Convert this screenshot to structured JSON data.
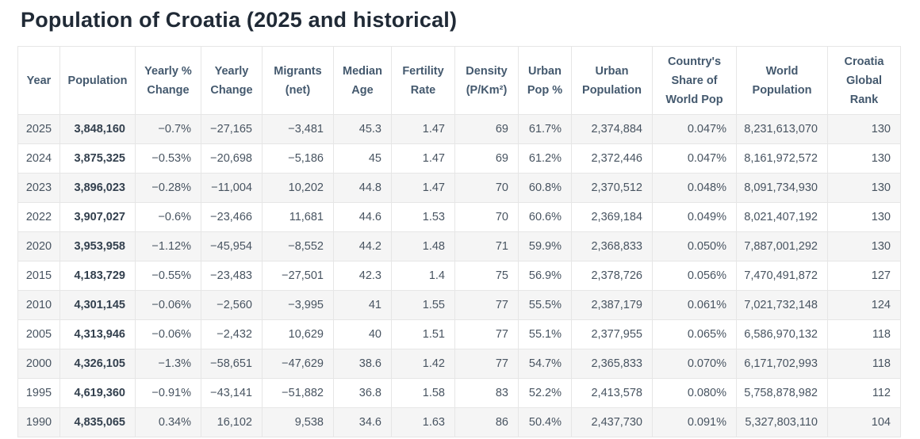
{
  "page": {
    "title": "Population of Croatia (2025 and historical)"
  },
  "table": {
    "columns": [
      {
        "id": "year",
        "label": "Year"
      },
      {
        "id": "population",
        "label": "Population"
      },
      {
        "id": "yearly_pct_change",
        "label": "Yearly % Change"
      },
      {
        "id": "yearly_change",
        "label": "Yearly Change"
      },
      {
        "id": "migrants_net",
        "label": "Migrants (net)"
      },
      {
        "id": "median_age",
        "label": "Median Age"
      },
      {
        "id": "fertility_rate",
        "label": "Fertility Rate"
      },
      {
        "id": "density",
        "label": "Density (P/Km²)"
      },
      {
        "id": "urban_pop_pct",
        "label": "Urban Pop %"
      },
      {
        "id": "urban_population",
        "label": "Urban Population"
      },
      {
        "id": "share_world_pop",
        "label": "Country's Share of World Pop"
      },
      {
        "id": "world_population",
        "label": "World Population"
      },
      {
        "id": "global_rank",
        "label": "Croatia Global Rank"
      }
    ],
    "rows": [
      [
        "2025",
        "3,848,160",
        "−0.7%",
        "−27,165",
        "−3,481",
        "45.3",
        "1.47",
        "69",
        "61.7%",
        "2,374,884",
        "0.047%",
        "8,231,613,070",
        "130"
      ],
      [
        "2024",
        "3,875,325",
        "−0.53%",
        "−20,698",
        "−5,186",
        "45",
        "1.47",
        "69",
        "61.2%",
        "2,372,446",
        "0.047%",
        "8,161,972,572",
        "130"
      ],
      [
        "2023",
        "3,896,023",
        "−0.28%",
        "−11,004",
        "10,202",
        "44.8",
        "1.47",
        "70",
        "60.8%",
        "2,370,512",
        "0.048%",
        "8,091,734,930",
        "130"
      ],
      [
        "2022",
        "3,907,027",
        "−0.6%",
        "−23,466",
        "11,681",
        "44.6",
        "1.53",
        "70",
        "60.6%",
        "2,369,184",
        "0.049%",
        "8,021,407,192",
        "130"
      ],
      [
        "2020",
        "3,953,958",
        "−1.12%",
        "−45,954",
        "−8,552",
        "44.2",
        "1.48",
        "71",
        "59.9%",
        "2,368,833",
        "0.050%",
        "7,887,001,292",
        "130"
      ],
      [
        "2015",
        "4,183,729",
        "−0.55%",
        "−23,483",
        "−27,501",
        "42.3",
        "1.4",
        "75",
        "56.9%",
        "2,378,726",
        "0.056%",
        "7,470,491,872",
        "127"
      ],
      [
        "2010",
        "4,301,145",
        "−0.06%",
        "−2,560",
        "−3,995",
        "41",
        "1.55",
        "77",
        "55.5%",
        "2,387,179",
        "0.061%",
        "7,021,732,148",
        "124"
      ],
      [
        "2005",
        "4,313,946",
        "−0.06%",
        "−2,432",
        "10,629",
        "40",
        "1.51",
        "77",
        "55.1%",
        "2,377,955",
        "0.065%",
        "6,586,970,132",
        "118"
      ],
      [
        "2000",
        "4,326,105",
        "−1.3%",
        "−58,651",
        "−47,629",
        "38.6",
        "1.42",
        "77",
        "54.7%",
        "2,365,833",
        "0.070%",
        "6,171,702,993",
        "118"
      ],
      [
        "1995",
        "4,619,360",
        "−0.91%",
        "−43,141",
        "−51,882",
        "36.8",
        "1.58",
        "83",
        "52.2%",
        "2,413,578",
        "0.080%",
        "5,758,878,982",
        "112"
      ],
      [
        "1990",
        "4,835,065",
        "0.34%",
        "16,102",
        "9,538",
        "34.6",
        "1.63",
        "86",
        "50.4%",
        "2,437,730",
        "0.091%",
        "5,327,803,110",
        "104"
      ]
    ]
  },
  "colors": {
    "stripe": "#f5f5f5",
    "border": "#e6e6e6",
    "header_text": "#44596e",
    "body_text": "#485461",
    "title_text": "#202a36"
  }
}
